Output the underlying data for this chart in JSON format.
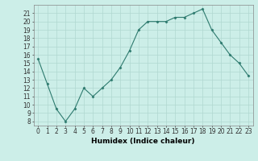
{
  "x": [
    0,
    1,
    2,
    3,
    4,
    5,
    6,
    7,
    8,
    9,
    10,
    11,
    12,
    13,
    14,
    15,
    16,
    17,
    18,
    19,
    20,
    21,
    22,
    23
  ],
  "y": [
    15.5,
    12.5,
    9.5,
    8.0,
    9.5,
    12.0,
    11.0,
    12.0,
    13.0,
    14.5,
    16.5,
    19.0,
    20.0,
    20.0,
    20.0,
    20.5,
    20.5,
    21.0,
    21.5,
    19.0,
    17.5,
    16.0,
    15.0,
    13.5
  ],
  "line_color": "#2d7a6e",
  "marker": "D",
  "marker_size": 1.5,
  "line_width": 0.8,
  "bg_color": "#cceee8",
  "grid_color": "#b0d8d0",
  "xlabel": "Humidex (Indice chaleur)",
  "xlim": [
    -0.5,
    23.5
  ],
  "ylim": [
    7.5,
    22.0
  ],
  "yticks": [
    8,
    9,
    10,
    11,
    12,
    13,
    14,
    15,
    16,
    17,
    18,
    19,
    20,
    21
  ],
  "xticks": [
    0,
    1,
    2,
    3,
    4,
    5,
    6,
    7,
    8,
    9,
    10,
    11,
    12,
    13,
    14,
    15,
    16,
    17,
    18,
    19,
    20,
    21,
    22,
    23
  ],
  "xlabel_fontsize": 6.5,
  "tick_fontsize": 5.5
}
